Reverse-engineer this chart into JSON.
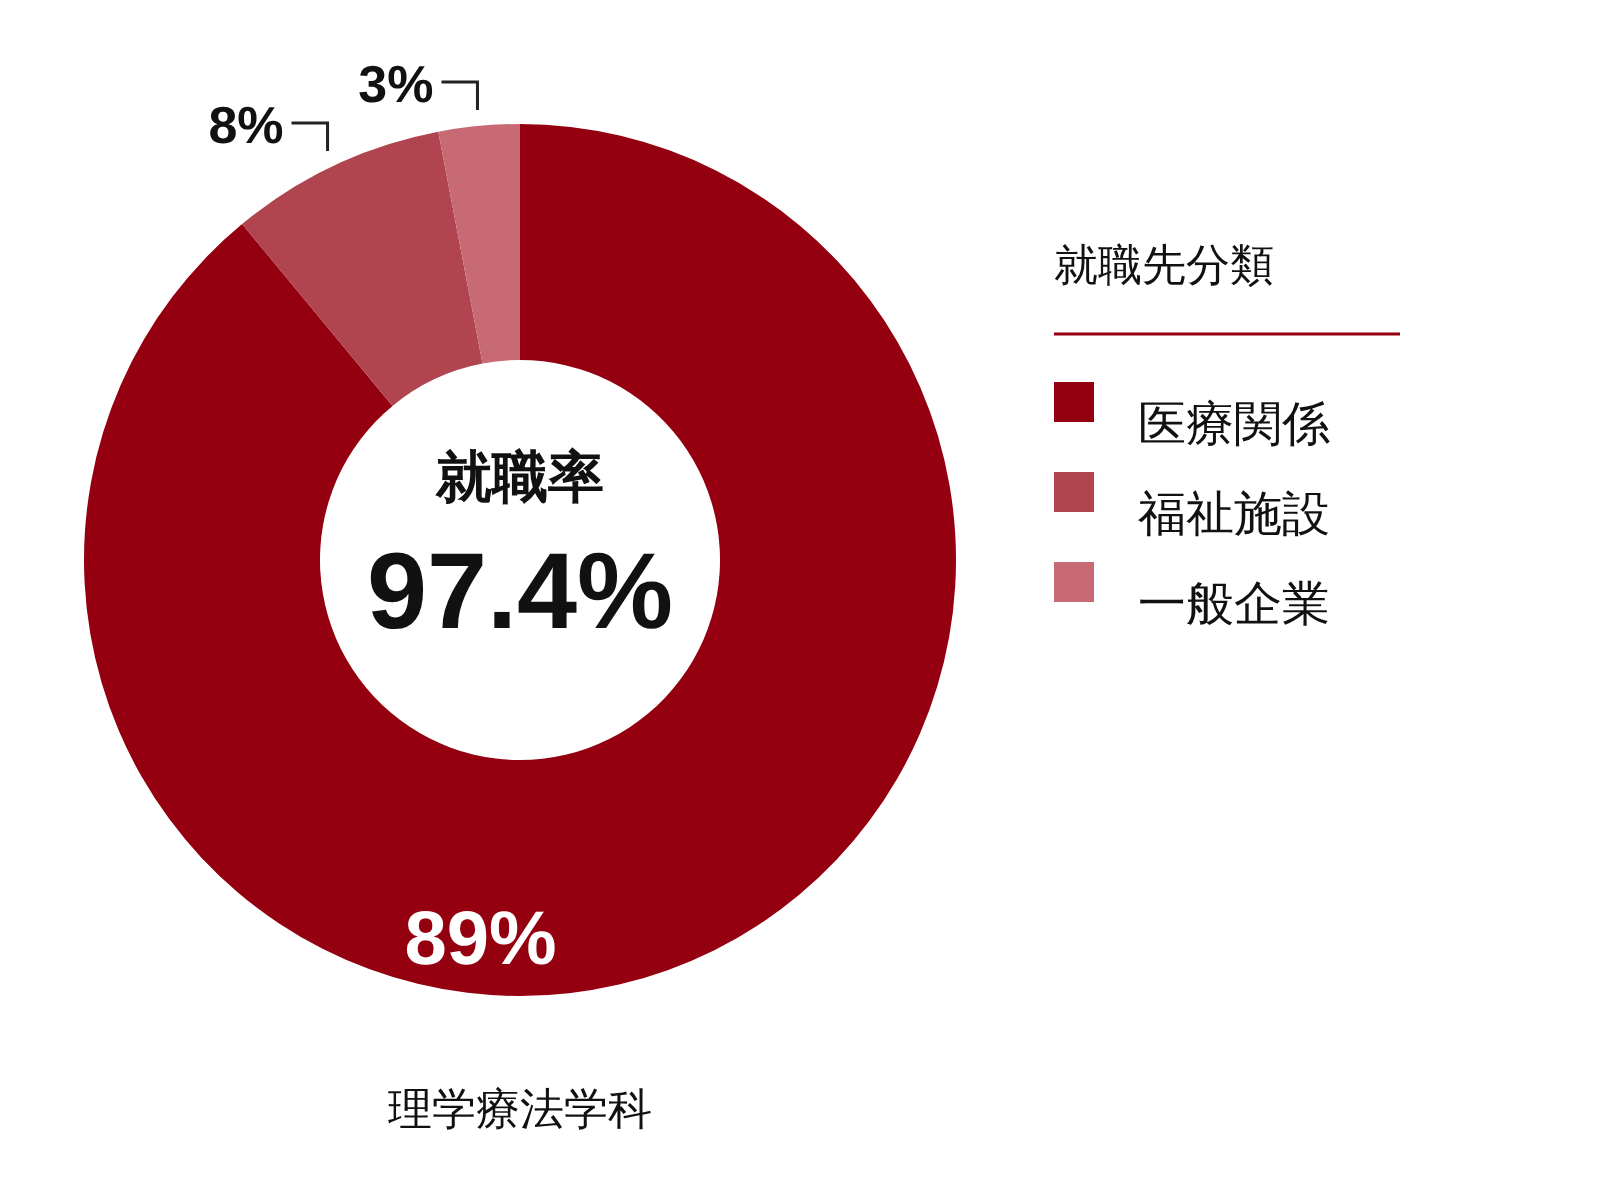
{
  "chart_data": {
    "type": "donut",
    "title": "理学療法学科",
    "legend_title": "就職先分類",
    "categories": [
      "医療関係",
      "福祉施設",
      "一般企業"
    ],
    "values": [
      89,
      8,
      3
    ],
    "colors": [
      "#94000f",
      "#b0444f",
      "#c76a74"
    ],
    "value_labels": [
      "89%",
      "8%",
      "3%"
    ],
    "legend": "right",
    "annotations": [
      "就職率",
      "97.4%"
    ]
  }
}
